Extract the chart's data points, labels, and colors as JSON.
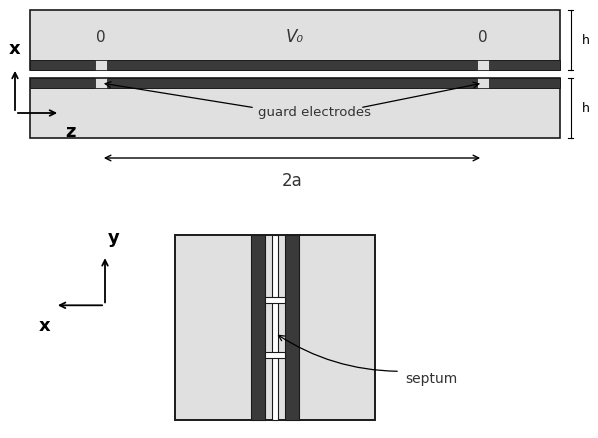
{
  "bg_color": "#ffffff",
  "plate_fill": "#e0e0e0",
  "dark_fill": "#3a3a3a",
  "dark_border": "#1a1a1a",
  "figsize": [
    5.98,
    4.38
  ],
  "dpi": 100,
  "label_V0": "V₀",
  "label_0": "0",
  "label_guard": "guard electrodes",
  "label_2a": "2a",
  "label_h": "h",
  "label_x_top": "x",
  "label_z": "z",
  "label_y": "y",
  "label_x_bot": "x",
  "label_septum": "septum"
}
